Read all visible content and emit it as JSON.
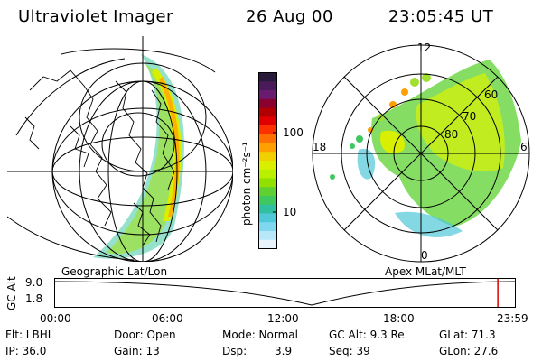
{
  "header": {
    "title": "Ultraviolet Imager",
    "date": "26 Aug 00",
    "time": "23:05:45 UT"
  },
  "left_panel": {
    "caption": "Geographic Lat/Lon"
  },
  "colorbar": {
    "unit_label": "photon cm⁻²s⁻¹",
    "ticks": [
      "100",
      "10"
    ],
    "colors": [
      "#2a1a3a",
      "#4a1a5a",
      "#6a1a70",
      "#8a0030",
      "#b00000",
      "#e00000",
      "#ff3000",
      "#ff7000",
      "#ffa000",
      "#f0d000",
      "#d8f000",
      "#b8f000",
      "#90e000",
      "#60d030",
      "#40c860",
      "#30c0a0",
      "#50c8d8",
      "#80d8f0",
      "#b8e8f8",
      "#e8f4fc"
    ],
    "scale": "log"
  },
  "right_panel": {
    "caption": "Apex MLat/MLT",
    "mlt_labels": [
      "12",
      "18",
      "6",
      "0"
    ],
    "mlat_labels": [
      "60",
      "70",
      "80"
    ]
  },
  "timeline": {
    "y_label": "GC Alt",
    "y_ticks": [
      "9.0",
      "1.8"
    ],
    "x_ticks": [
      "00:00",
      "06:00",
      "12:00",
      "18:00",
      "23:59"
    ],
    "marker_color": "#e00000",
    "marker_time_fraction": 0.962
  },
  "status": {
    "flt": "Flt: LBHL",
    "ip": "IP: 36.0",
    "door": "Door: Open",
    "gain": "Gain: 13",
    "mode": "Mode: Normal",
    "dsp_label": "Dsp:",
    "dsp_value": "3.9",
    "gc_alt": "GC Alt: 9.3 Re",
    "seq": "Seq: 39",
    "glat": "GLat: 71.3",
    "glon": "GLon: 27.6"
  }
}
